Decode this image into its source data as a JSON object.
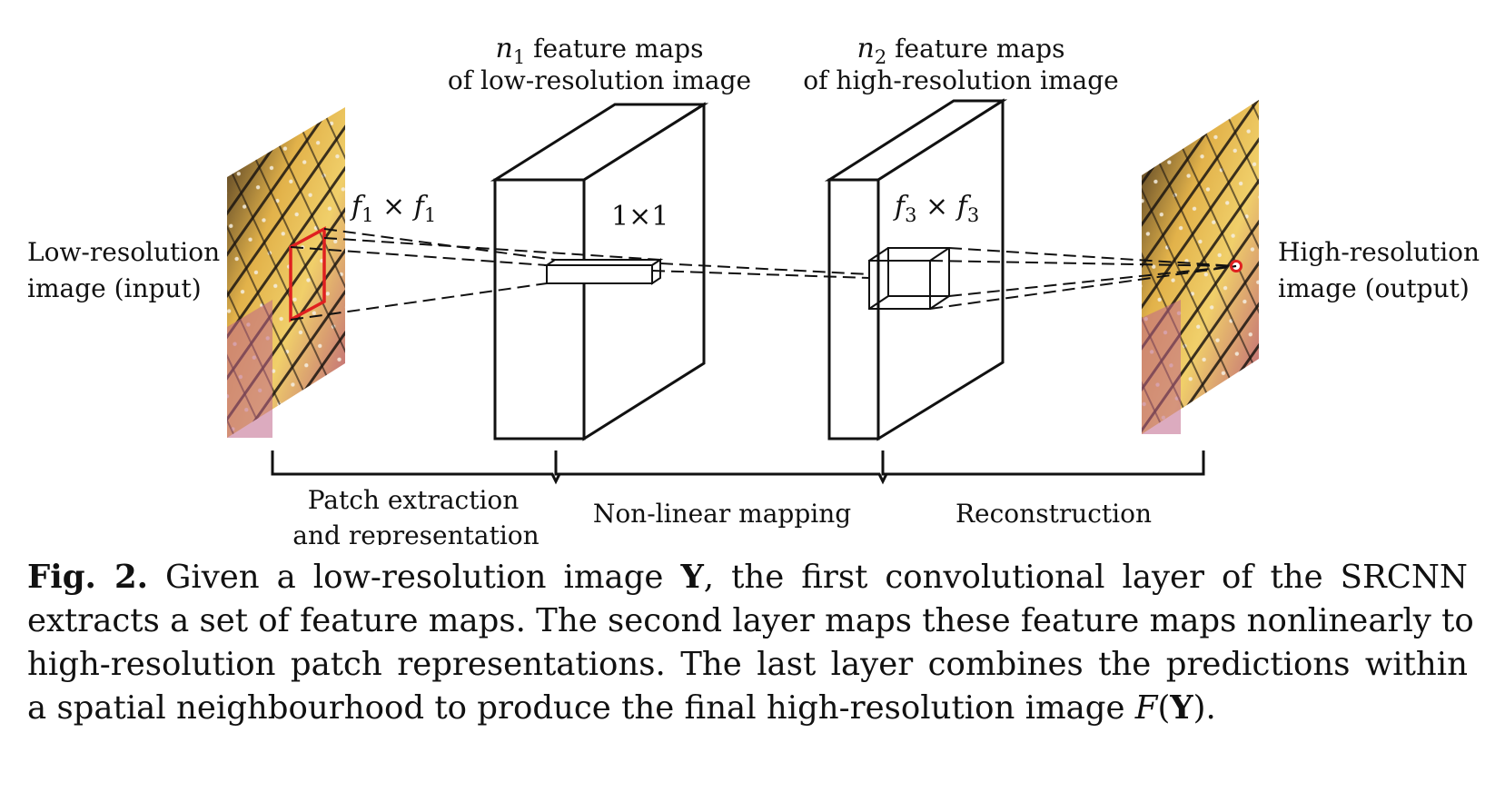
{
  "figure": {
    "input_label": [
      "Low-resolution",
      "image (input)"
    ],
    "output_label": [
      "High-resolution",
      "image (output)"
    ],
    "layer1_caption": [
      "n",
      "1",
      " feature maps",
      "of low-resolution image"
    ],
    "layer2_caption": [
      "n",
      "2",
      " feature maps",
      "of high-resolution image"
    ],
    "filter1": [
      "f",
      "1",
      " × ",
      "f",
      "1"
    ],
    "filter2": "1×1",
    "filter3": [
      "f",
      "3",
      " × ",
      "f",
      "3"
    ],
    "stages": {
      "patch": [
        "Patch extraction",
        "and representation"
      ],
      "mapping": "Non-linear mapping",
      "recon": "Reconstruction"
    },
    "colors": {
      "highlight": "#e02020",
      "ink": "#111111"
    }
  },
  "caption": {
    "label": "Fig. 2.",
    "line1_a": " Given a low-resolution image ",
    "line1_Y": "Y",
    "line1_b": ", the first convolutional layer of the SRCNN",
    "line2": "extracts a set of feature maps. The second layer maps these feature maps nonlinearly to",
    "line3": "high-resolution patch representations. The last layer combines the predictions within",
    "line4_a": "a spatial neighbourhood to produce the final high-resolution image ",
    "line4_F": "F",
    "line4_open": "(",
    "line4_Y": "Y",
    "line4_close": ")."
  }
}
